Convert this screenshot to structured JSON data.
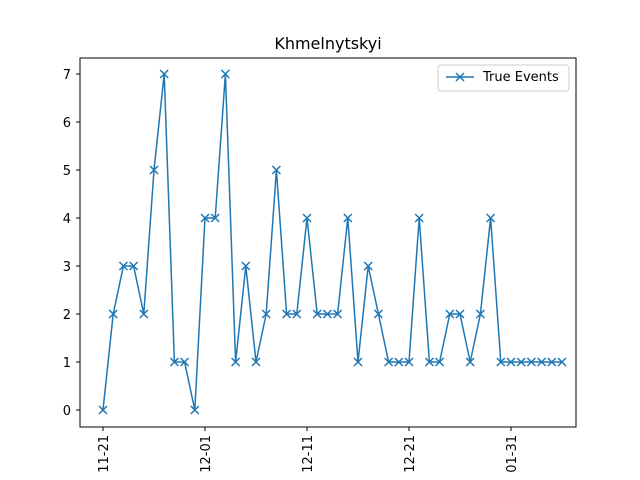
{
  "chart_data": {
    "type": "line",
    "title": "Khmelnytskyi",
    "xlabel": "",
    "ylabel": "",
    "x_tick_labels": [
      "11-21",
      "12-01",
      "12-11",
      "12-21",
      "01-31"
    ],
    "y_ticks": [
      0,
      1,
      2,
      3,
      4,
      5,
      6,
      7
    ],
    "grid": false,
    "legend_position": "top-right",
    "series": [
      {
        "name": "True Events",
        "color": "#1f77b4",
        "marker": "x",
        "values": [
          0,
          2,
          3,
          3,
          2,
          5,
          7,
          1,
          1,
          0,
          4,
          4,
          7,
          1,
          3,
          1,
          2,
          5,
          2,
          2,
          4,
          2,
          2,
          2,
          4,
          1,
          3,
          2,
          1,
          1,
          1,
          4,
          1,
          1,
          2,
          2,
          1,
          2,
          4,
          1,
          1,
          1,
          1,
          1,
          1,
          1
        ]
      }
    ]
  }
}
